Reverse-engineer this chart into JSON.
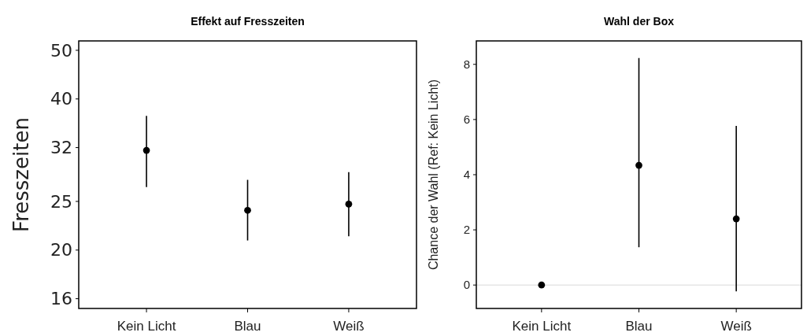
{
  "chart_data": [
    {
      "type": "scatter",
      "title": "Effekt auf Fresszeiten",
      "ylabel": "Fresszeiten",
      "categories": [
        "Kein Licht",
        "Blau",
        "Weiß"
      ],
      "values": [
        31.6,
        24.0,
        24.7
      ],
      "errors": [
        [
          26.7,
          37.0
        ],
        [
          20.9,
          27.6
        ],
        [
          21.3,
          28.6
        ]
      ],
      "color": "#000000",
      "marker": "circle",
      "log": true,
      "ylim": [
        15.3,
        52.2
      ],
      "yticks": [
        16,
        20,
        25,
        32,
        40,
        50
      ],
      "grid": false
    },
    {
      "type": "scatter",
      "title": "Wahl der Box",
      "ylabel": "Chance der Wahl (Ref: Kein Licht)",
      "categories": [
        "Kein Licht",
        "Blau",
        "Weiß"
      ],
      "values": [
        0,
        4.34,
        2.4
      ],
      "errors": [
        null,
        [
          1.37,
          8.23
        ],
        [
          -0.23,
          5.77
        ]
      ],
      "color": "#000000",
      "marker": "circle",
      "ylim": [
        -0.85,
        8.85
      ],
      "yticks": [
        0,
        2,
        4,
        6,
        8
      ],
      "grid": false,
      "ref_lines": [
        {
          "axis": "y",
          "value": 0,
          "color": "#d9d9d9"
        }
      ]
    }
  ]
}
